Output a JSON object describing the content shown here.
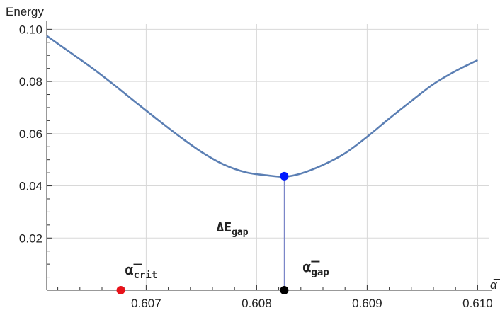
{
  "chart_data": {
    "type": "line",
    "xlabel": "α̅",
    "ylabel": "Energy",
    "xlim": [
      0.6061,
      0.6101
    ],
    "ylim": [
      0.0,
      0.102
    ],
    "x_ticks": [
      0.607,
      0.608,
      0.609,
      0.61
    ],
    "x_tick_labels": [
      "0.607",
      "0.608",
      "0.609",
      "0.610"
    ],
    "y_ticks": [
      0.02,
      0.04,
      0.06,
      0.08,
      0.1
    ],
    "y_tick_labels": [
      "0.02",
      "0.04",
      "0.06",
      "0.08",
      "0.10"
    ],
    "grid": true,
    "series": [
      {
        "color": "#5b7fb4",
        "x": [
          0.6061,
          0.6063,
          0.6065,
          0.6067,
          0.6069,
          0.6071,
          0.6073,
          0.6075,
          0.6077,
          0.6079,
          0.6081,
          0.60825,
          0.6084,
          0.6086,
          0.6088,
          0.609,
          0.6092,
          0.6094,
          0.6096,
          0.6098,
          0.61
        ],
        "y": [
          0.0975,
          0.0915,
          0.0855,
          0.079,
          0.0722,
          0.0655,
          0.059,
          0.053,
          0.0482,
          0.0452,
          0.044,
          0.0435,
          0.0447,
          0.048,
          0.0525,
          0.0588,
          0.0658,
          0.0725,
          0.079,
          0.084,
          0.0882
        ]
      }
    ],
    "points": [
      {
        "name": "minimum",
        "x": 0.60825,
        "y": 0.0437,
        "color": "#0019ff"
      },
      {
        "name": "alpha-crit",
        "x": 0.60677,
        "y": 0.0,
        "color": "#e8121a"
      },
      {
        "name": "alpha-gap",
        "x": 0.60825,
        "y": 0.0,
        "color": "#000000"
      }
    ],
    "vertical_line": {
      "x": 0.60825,
      "from": 0.0,
      "to": 0.0437,
      "color": "#7b86c8"
    },
    "annotations": {
      "delta_e": {
        "main": "ΔE",
        "sub": "gap"
      },
      "alpha_crit": {
        "main": "α̅",
        "sub": "crit"
      },
      "alpha_gap": {
        "main": "α̅",
        "sub": "gap"
      }
    }
  }
}
